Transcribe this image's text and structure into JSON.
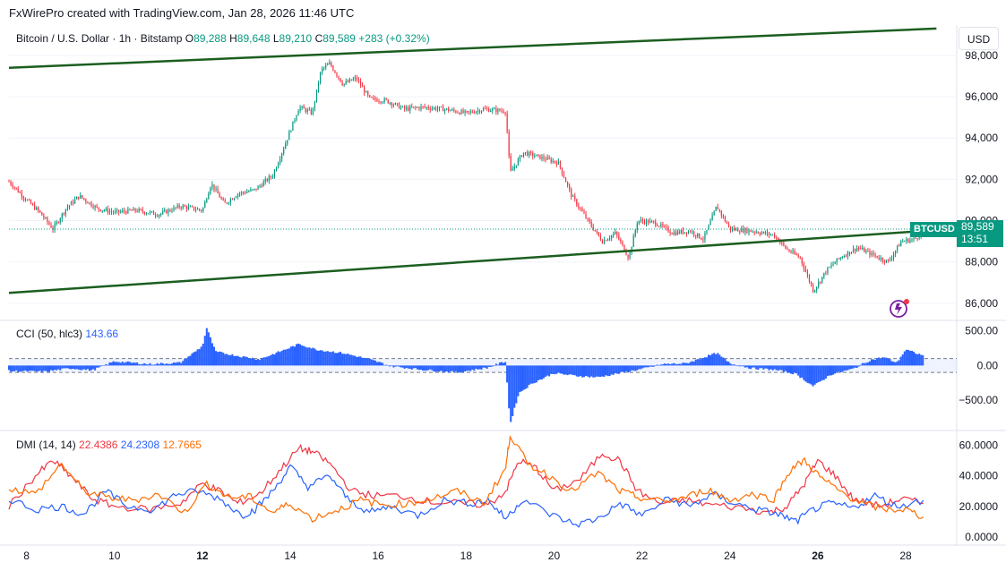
{
  "caption": "FxWirePro created with TradingView.com, Jan 28, 2026 11:46 UTC",
  "symbol": {
    "description": "Bitcoin / U.S. Dollar · 1h · Bitstamp",
    "open_label": "O",
    "open": "89,288",
    "high_label": "H",
    "high": "89,648",
    "low_label": "L",
    "low": "89,210",
    "close_label": "C",
    "close": "89,589",
    "change": "+283 (+0.32%)"
  },
  "currency": "USD",
  "price_tag": {
    "ticker": "BTCUSD",
    "price": "89,589",
    "countdown": "13:51"
  },
  "colors": {
    "up": "#089981",
    "down": "#f23645",
    "trendline": "#1b5e20",
    "cci": "#2962ff",
    "pdi": "#f23645",
    "mdi": "#2962ff",
    "adx": "#ff6d00"
  },
  "chart_data": [
    {
      "type": "candlestick",
      "title": "Bitcoin / U.S. Dollar · 1h · Bitstamp",
      "x_ticks": [
        {
          "day": 8,
          "label": "8"
        },
        {
          "day": 10,
          "label": "10"
        },
        {
          "day": 12,
          "label": "12",
          "bold": true
        },
        {
          "day": 14,
          "label": "14"
        },
        {
          "day": 16,
          "label": "16"
        },
        {
          "day": 18,
          "label": "18"
        },
        {
          "day": 20,
          "label": "20"
        },
        {
          "day": 22,
          "label": "22"
        },
        {
          "day": 24,
          "label": "24"
        },
        {
          "day": 26,
          "label": "26",
          "bold": true
        },
        {
          "day": 28,
          "label": "28"
        }
      ],
      "x_range_days": [
        7.6,
        29.1
      ],
      "y_ticks": [
        {
          "value": 86000,
          "label": "86,000"
        },
        {
          "value": 88000,
          "label": "88,000"
        },
        {
          "value": 90000,
          "label": "90,000"
        },
        {
          "value": 92000,
          "label": "92,000"
        },
        {
          "value": 94000,
          "label": "94,000"
        },
        {
          "value": 96000,
          "label": "96,000"
        },
        {
          "value": 98000,
          "label": "98,000"
        }
      ],
      "ylim": [
        85300,
        98300
      ],
      "last_price": 89589,
      "close_path": [
        [
          7.6,
          91.9
        ],
        [
          8.0,
          91.0
        ],
        [
          8.3,
          90.4
        ],
        [
          8.6,
          89.6
        ],
        [
          8.9,
          90.6
        ],
        [
          9.2,
          91.2
        ],
        [
          9.6,
          90.6
        ],
        [
          10.0,
          90.4
        ],
        [
          10.5,
          90.5
        ],
        [
          11.0,
          90.3
        ],
        [
          11.5,
          90.7
        ],
        [
          12.0,
          90.5
        ],
        [
          12.2,
          91.8
        ],
        [
          12.5,
          90.8
        ],
        [
          12.8,
          91.3
        ],
        [
          13.2,
          91.5
        ],
        [
          13.6,
          92.2
        ],
        [
          13.9,
          93.8
        ],
        [
          14.2,
          95.5
        ],
        [
          14.5,
          95.2
        ],
        [
          14.7,
          97.3
        ],
        [
          14.9,
          97.6
        ],
        [
          15.2,
          96.6
        ],
        [
          15.5,
          96.9
        ],
        [
          15.8,
          95.9
        ],
        [
          16.2,
          95.8
        ],
        [
          16.6,
          95.4
        ],
        [
          17.0,
          95.5
        ],
        [
          17.5,
          95.4
        ],
        [
          18.0,
          95.2
        ],
        [
          18.4,
          95.4
        ],
        [
          18.9,
          95.3
        ],
        [
          19.0,
          92.3
        ],
        [
          19.3,
          93.3
        ],
        [
          19.8,
          93.0
        ],
        [
          20.1,
          92.8
        ],
        [
          20.4,
          91.2
        ],
        [
          20.8,
          89.9
        ],
        [
          21.1,
          89.0
        ],
        [
          21.4,
          89.4
        ],
        [
          21.7,
          88.2
        ],
        [
          21.9,
          90.0
        ],
        [
          22.3,
          89.9
        ],
        [
          22.7,
          89.4
        ],
        [
          23.1,
          89.5
        ],
        [
          23.4,
          89.1
        ],
        [
          23.7,
          90.7
        ],
        [
          24.0,
          89.6
        ],
        [
          24.5,
          89.5
        ],
        [
          25.0,
          89.3
        ],
        [
          25.3,
          88.6
        ],
        [
          25.6,
          88.2
        ],
        [
          25.9,
          86.6
        ],
        [
          26.2,
          87.6
        ],
        [
          26.5,
          88.2
        ],
        [
          26.9,
          88.7
        ],
        [
          27.3,
          88.3
        ],
        [
          27.6,
          88.0
        ],
        [
          27.9,
          89.0
        ],
        [
          28.2,
          89.1
        ],
        [
          28.4,
          89.5
        ]
      ],
      "y_path_unit": "thousands USD",
      "trendlines": [
        {
          "name": "upper",
          "from": [
            7.6,
            97.4
          ],
          "to": [
            28.7,
            99.3
          ]
        },
        {
          "name": "lower",
          "from": [
            7.6,
            86.5
          ],
          "to": [
            29.1,
            89.6
          ]
        }
      ]
    },
    {
      "type": "bar",
      "title": "CCI (50, hlc3)",
      "current_value": "143.66",
      "y_ticks": [
        {
          "value": 500,
          "label": "500.00"
        },
        {
          "value": 0,
          "label": "0.00"
        },
        {
          "value": -500,
          "label": "−500.00"
        }
      ],
      "ylim": [
        -900,
        600
      ],
      "band": [
        100,
        -100
      ],
      "path": [
        [
          7.6,
          -80
        ],
        [
          8.4,
          -90
        ],
        [
          9.0,
          -40
        ],
        [
          9.5,
          -70
        ],
        [
          10.0,
          60
        ],
        [
          10.8,
          20
        ],
        [
          11.5,
          40
        ],
        [
          12.0,
          280
        ],
        [
          12.1,
          540
        ],
        [
          12.3,
          200
        ],
        [
          12.8,
          140
        ],
        [
          13.3,
          90
        ],
        [
          13.8,
          210
        ],
        [
          14.2,
          310
        ],
        [
          14.6,
          230
        ],
        [
          15.2,
          180
        ],
        [
          15.8,
          90
        ],
        [
          16.3,
          -10
        ],
        [
          17.0,
          -60
        ],
        [
          17.8,
          -100
        ],
        [
          18.5,
          -30
        ],
        [
          18.9,
          60
        ],
        [
          19.0,
          -850
        ],
        [
          19.2,
          -400
        ],
        [
          19.5,
          -260
        ],
        [
          20.0,
          -110
        ],
        [
          20.5,
          -150
        ],
        [
          21.0,
          -170
        ],
        [
          21.5,
          -110
        ],
        [
          22.0,
          -50
        ],
        [
          22.5,
          20
        ],
        [
          23.0,
          30
        ],
        [
          23.7,
          180
        ],
        [
          24.0,
          30
        ],
        [
          24.5,
          -40
        ],
        [
          25.0,
          -60
        ],
        [
          25.5,
          -120
        ],
        [
          25.9,
          -300
        ],
        [
          26.3,
          -130
        ],
        [
          26.8,
          -50
        ],
        [
          27.2,
          80
        ],
        [
          27.5,
          120
        ],
        [
          27.8,
          40
        ],
        [
          28.0,
          230
        ],
        [
          28.4,
          143
        ]
      ]
    },
    {
      "type": "line",
      "title": "DMI (14, 14)",
      "y_ticks": [
        {
          "value": 0,
          "label": "0.0000"
        },
        {
          "value": 20,
          "label": "20.0000"
        },
        {
          "value": 40,
          "label": "40.0000"
        },
        {
          "value": 60,
          "label": "60.0000"
        }
      ],
      "ylim": [
        -3,
        68
      ],
      "series": [
        {
          "name": "22.4386",
          "color": "#f23645",
          "values": [
            [
              7.6,
              20
            ],
            [
              8.2,
              40
            ],
            [
              8.6,
              50
            ],
            [
              9.0,
              40
            ],
            [
              9.5,
              25
            ],
            [
              10.0,
              20
            ],
            [
              10.8,
              18
            ],
            [
              11.5,
              22
            ],
            [
              12.0,
              35
            ],
            [
              12.4,
              30
            ],
            [
              12.8,
              22
            ],
            [
              13.3,
              28
            ],
            [
              13.8,
              45
            ],
            [
              14.2,
              58
            ],
            [
              14.5,
              56
            ],
            [
              14.9,
              48
            ],
            [
              15.4,
              30
            ],
            [
              15.9,
              27
            ],
            [
              16.5,
              27
            ],
            [
              17.2,
              23
            ],
            [
              17.8,
              22
            ],
            [
              18.5,
              21
            ],
            [
              18.9,
              30
            ],
            [
              19.2,
              50
            ],
            [
              19.6,
              45
            ],
            [
              20.0,
              30
            ],
            [
              20.6,
              38
            ],
            [
              21.1,
              55
            ],
            [
              21.5,
              50
            ],
            [
              21.9,
              30
            ],
            [
              22.4,
              22
            ],
            [
              23.0,
              24
            ],
            [
              23.6,
              21
            ],
            [
              24.3,
              19
            ],
            [
              24.9,
              16
            ],
            [
              25.3,
              20
            ],
            [
              25.7,
              35
            ],
            [
              26.0,
              50
            ],
            [
              26.4,
              40
            ],
            [
              26.8,
              25
            ],
            [
              27.4,
              20
            ],
            [
              27.9,
              25
            ],
            [
              28.4,
              22
            ]
          ]
        },
        {
          "name": "24.2308",
          "color": "#2962ff",
          "values": [
            [
              7.6,
              25
            ],
            [
              8.2,
              18
            ],
            [
              8.8,
              20
            ],
            [
              9.3,
              15
            ],
            [
              9.8,
              30
            ],
            [
              10.3,
              20
            ],
            [
              10.9,
              18
            ],
            [
              11.4,
              28
            ],
            [
              11.9,
              30
            ],
            [
              12.4,
              25
            ],
            [
              12.9,
              14
            ],
            [
              13.2,
              18
            ],
            [
              13.6,
              30
            ],
            [
              14.0,
              46
            ],
            [
              14.4,
              33
            ],
            [
              14.9,
              40
            ],
            [
              15.3,
              25
            ],
            [
              15.8,
              16
            ],
            [
              16.3,
              20
            ],
            [
              16.9,
              14
            ],
            [
              17.5,
              24
            ],
            [
              18.1,
              22
            ],
            [
              18.5,
              24
            ],
            [
              18.9,
              12
            ],
            [
              19.3,
              25
            ],
            [
              19.9,
              15
            ],
            [
              20.5,
              8
            ],
            [
              21.0,
              12
            ],
            [
              21.5,
              22
            ],
            [
              22.0,
              14
            ],
            [
              22.6,
              25
            ],
            [
              23.1,
              20
            ],
            [
              23.6,
              28
            ],
            [
              24.1,
              22
            ],
            [
              24.6,
              18
            ],
            [
              25.1,
              15
            ],
            [
              25.5,
              10
            ],
            [
              25.9,
              18
            ],
            [
              26.3,
              22
            ],
            [
              26.8,
              19
            ],
            [
              27.3,
              27
            ],
            [
              27.8,
              20
            ],
            [
              28.4,
              24
            ]
          ]
        },
        {
          "name": "12.7665",
          "color": "#ff6d00",
          "values": [
            [
              7.6,
              32
            ],
            [
              8.2,
              28
            ],
            [
              8.8,
              48
            ],
            [
              9.3,
              30
            ],
            [
              9.8,
              26
            ],
            [
              10.4,
              24
            ],
            [
              11.0,
              28
            ],
            [
              11.6,
              16
            ],
            [
              12.1,
              35
            ],
            [
              12.6,
              26
            ],
            [
              13.1,
              26
            ],
            [
              13.6,
              16
            ],
            [
              14.0,
              22
            ],
            [
              14.5,
              12
            ],
            [
              15.1,
              18
            ],
            [
              15.6,
              24
            ],
            [
              16.1,
              21
            ],
            [
              16.7,
              22
            ],
            [
              17.2,
              25
            ],
            [
              17.8,
              30
            ],
            [
              18.4,
              22
            ],
            [
              18.9,
              45
            ],
            [
              19.0,
              67
            ],
            [
              19.4,
              48
            ],
            [
              19.9,
              40
            ],
            [
              20.4,
              30
            ],
            [
              21.0,
              42
            ],
            [
              21.5,
              30
            ],
            [
              21.9,
              26
            ],
            [
              22.5,
              23
            ],
            [
              23.0,
              26
            ],
            [
              23.5,
              31
            ],
            [
              24.0,
              24
            ],
            [
              24.5,
              28
            ],
            [
              25.0,
              25
            ],
            [
              25.4,
              45
            ],
            [
              25.7,
              50
            ],
            [
              26.1,
              38
            ],
            [
              26.5,
              30
            ],
            [
              27.0,
              22
            ],
            [
              27.5,
              18
            ],
            [
              28.0,
              18
            ],
            [
              28.4,
              13
            ]
          ]
        }
      ]
    }
  ]
}
